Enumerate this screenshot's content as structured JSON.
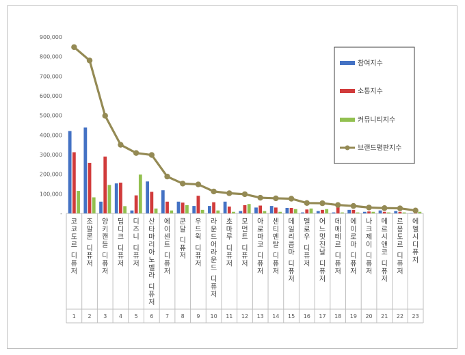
{
  "chart_data": {
    "type": "bar",
    "title": "",
    "xlabel": "",
    "ylabel": "",
    "ylim": [
      0,
      900000
    ],
    "yticks": [
      "-",
      "100,000",
      "200,000",
      "300,000",
      "400,000",
      "500,000",
      "600,000",
      "700,000",
      "800,000",
      "900,000"
    ],
    "legend_position": "top-right",
    "categories": [
      "코코도르 디퓨저",
      "조말론 디퓨저",
      "양키캔들 디퓨저",
      "딥디크 디퓨저",
      "디즈니 디퓨저",
      "산타마리아노벨라 디퓨저",
      "에이센트 디퓨저",
      "쿤달 디퓨저",
      "우드윅 디퓨저",
      "라운드어라운드 디퓨저",
      "초마루 디퓨저",
      "모먼트 디퓨저",
      "아로마코 디퓨저",
      "센티멘탈 디퓨저",
      "데일리콤마 디퓨저",
      "멜로우 디퓨저",
      "어느멋진날 디퓨저",
      "데메테르 디퓨저",
      "에이로마 디퓨저",
      "나크제이 디퓨저",
      "메르시앤코 디퓨저",
      "르몽도르 디퓨저",
      "에멜시디퓨저"
    ],
    "index_labels": [
      "1",
      "2",
      "3",
      "4",
      "5",
      "6",
      "7",
      "8",
      "9",
      "10",
      "11",
      "12",
      "13",
      "14",
      "15",
      "16",
      "17",
      "18",
      "19",
      "20",
      "21",
      "22",
      "23"
    ],
    "series": [
      {
        "name": "참여지수",
        "kind": "bar",
        "color": "#4472c4",
        "values": [
          420000,
          438000,
          60000,
          153000,
          15000,
          163000,
          118000,
          60000,
          38000,
          38000,
          60000,
          12000,
          30000,
          38000,
          28000,
          5000,
          12000,
          5000,
          18000,
          8000,
          15000,
          12000,
          2000
        ]
      },
      {
        "name": "소통지수",
        "kind": "bar",
        "color": "#d13b3b",
        "values": [
          312000,
          258000,
          290000,
          157000,
          92000,
          110000,
          60000,
          55000,
          90000,
          57000,
          35000,
          42000,
          40000,
          30000,
          28000,
          20000,
          18000,
          32000,
          18000,
          10000,
          8000,
          8000,
          3000
        ]
      },
      {
        "name": "커뮤니티지수",
        "kind": "bar",
        "color": "#92c050",
        "values": [
          115000,
          82000,
          145000,
          37000,
          198000,
          25000,
          15000,
          42000,
          18000,
          15000,
          8000,
          48000,
          12000,
          8000,
          22000,
          25000,
          22000,
          5000,
          5000,
          8000,
          5000,
          5000,
          8000
        ]
      },
      {
        "name": "브랜드평판지수",
        "kind": "line",
        "color": "#948a54",
        "values": [
          848000,
          780000,
          498000,
          350000,
          308000,
          298000,
          188000,
          152000,
          148000,
          112000,
          103000,
          98000,
          80000,
          77000,
          75000,
          53000,
          52000,
          43000,
          38000,
          30000,
          27000,
          26000,
          15000
        ]
      }
    ]
  }
}
